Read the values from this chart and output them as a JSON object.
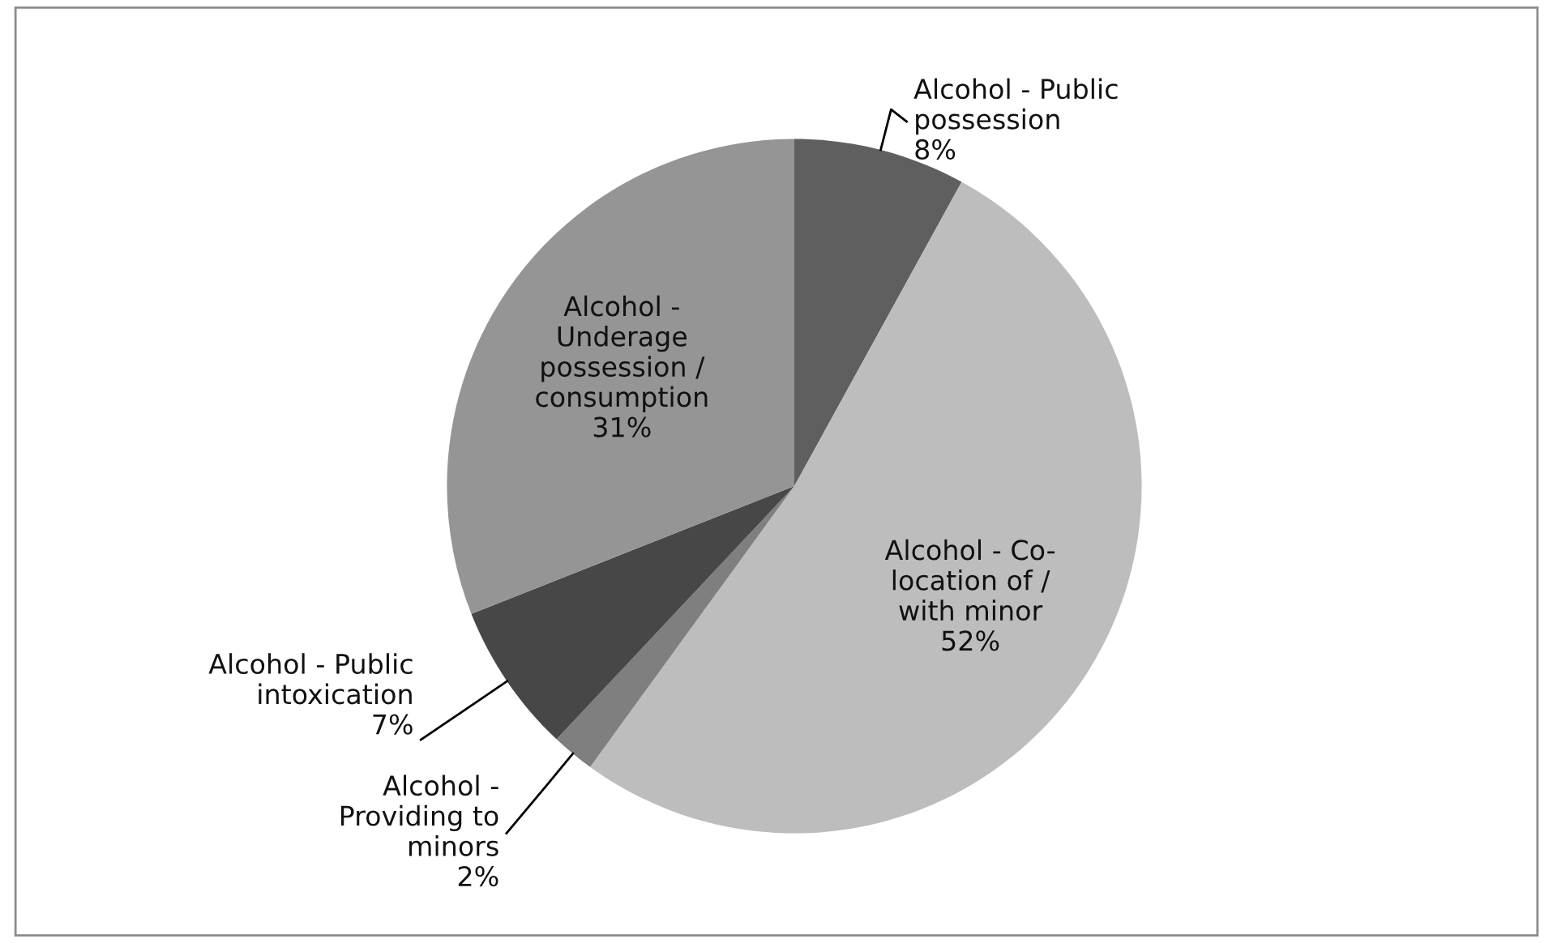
{
  "chart_data": {
    "type": "pie",
    "categories": [
      "Alcohol - Public\npossession",
      "Alcohol - Co-\nlocation of /\nwith minor",
      "Alcohol -\nProviding to\nminors",
      "Alcohol - Public\nintoxication",
      "Alcohol -\nUnderage\npossession /\nconsumption"
    ],
    "values": [
      8,
      52,
      2,
      7,
      31
    ],
    "value_labels": [
      "8%",
      "52%",
      "2%",
      "7%",
      "31%"
    ],
    "colors": [
      "#5f5f5f",
      "#bdbdbd",
      "#7f7f7f",
      "#474747",
      "#959595"
    ],
    "legend": false
  }
}
